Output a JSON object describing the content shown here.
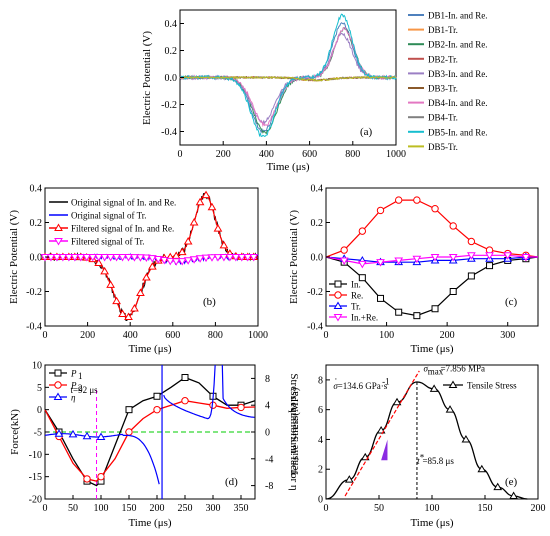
{
  "chart_data": [
    {
      "type": "line",
      "panel_label": "(a)",
      "xlabel": "Time (μs)",
      "ylabel": "Electric Potential (V)",
      "xlim": [
        0,
        1000
      ],
      "ylim": [
        -0.5,
        0.5
      ],
      "xticks": [
        "0",
        "200",
        "400",
        "600",
        "800",
        "1000"
      ],
      "yticks": [
        "-0.4",
        "-0.2",
        "0.0",
        "0.2",
        "0.4"
      ],
      "legend_position": "right",
      "series": [
        {
          "name": "DB1-In. and Re.",
          "color": "#4f81bd",
          "peak_neg": -0.4,
          "peak_pos": 0.4
        },
        {
          "name": "DB1-Tr.",
          "color": "#f79646",
          "amp": -0.02
        },
        {
          "name": "DB2-In. and Re.",
          "color": "#2e8b57",
          "peak_neg": -0.41,
          "peak_pos": 0.36
        },
        {
          "name": "DB2-Tr.",
          "color": "#c0504d",
          "amp": -0.02
        },
        {
          "name": "DB3-In. and Re.",
          "color": "#9b7fc4",
          "peak_neg": -0.33,
          "peak_pos": 0.32
        },
        {
          "name": "DB3-Tr.",
          "color": "#8b5a2b",
          "amp": -0.02
        },
        {
          "name": "DB4-In. and Re.",
          "color": "#e377c2",
          "peak_neg": -0.35,
          "peak_pos": 0.36
        },
        {
          "name": "DB4-Tr.",
          "color": "#808080",
          "amp": -0.02
        },
        {
          "name": "DB5-In. and Re.",
          "color": "#17becf",
          "peak_neg": -0.44,
          "peak_pos": 0.46
        },
        {
          "name": "DB5-Tr.",
          "color": "#bcbd22",
          "amp": -0.02
        }
      ]
    },
    {
      "type": "line",
      "panel_label": "(b)",
      "xlabel": "Time (μs)",
      "ylabel": "Electric Potential (V)",
      "xlim": [
        0,
        1000
      ],
      "ylim": [
        -0.4,
        0.4
      ],
      "xticks": [
        "0",
        "200",
        "400",
        "600",
        "800",
        "1000"
      ],
      "yticks": [
        "-0.4",
        "-0.2",
        "0.0",
        "0.2",
        "0.4"
      ],
      "legend_position": "top-left",
      "series": [
        {
          "name": "Original signal of In. and Re.",
          "color": "#000000"
        },
        {
          "name": "Original signal of Tr.",
          "color": "#0000ff"
        },
        {
          "name": "Filtered signal of In. and Re.",
          "color": "#ff0000",
          "marker": "triangle"
        },
        {
          "name": "Filtered signal of Tr.",
          "color": "#ff00ff",
          "marker": "triangle-down"
        }
      ],
      "key_points": {
        "incident_min": [
          385,
          -0.35
        ],
        "reflected_max": [
          750,
          0.36
        ]
      }
    },
    {
      "type": "line",
      "panel_label": "(c)",
      "xlabel": "Time (μs)",
      "ylabel": "Electric Potential (V)",
      "xlim": [
        0,
        350
      ],
      "ylim": [
        -0.4,
        0.4
      ],
      "xticks": [
        "0",
        "100",
        "200",
        "300"
      ],
      "yticks": [
        "-0.4",
        "-0.2",
        "0.0",
        "0.2",
        "0.4"
      ],
      "legend_position": "bottom-left",
      "x": [
        0,
        30,
        60,
        90,
        120,
        150,
        180,
        210,
        240,
        270,
        300,
        330,
        350
      ],
      "series": [
        {
          "name": "In.",
          "color": "#000000",
          "marker": "square",
          "values": [
            0,
            -0.03,
            -0.12,
            -0.24,
            -0.32,
            -0.34,
            -0.3,
            -0.2,
            -0.11,
            -0.05,
            -0.02,
            -0.01,
            0
          ]
        },
        {
          "name": "Re.",
          "color": "#ff0000",
          "marker": "circle",
          "values": [
            0,
            0.04,
            0.15,
            0.27,
            0.33,
            0.33,
            0.28,
            0.18,
            0.09,
            0.04,
            0.02,
            0.01,
            0
          ]
        },
        {
          "name": "Tr.",
          "color": "#0000ff",
          "marker": "triangle",
          "values": [
            0,
            -0.01,
            -0.02,
            -0.03,
            -0.03,
            -0.03,
            -0.02,
            -0.02,
            -0.01,
            -0.01,
            -0.01,
            0,
            0
          ]
        },
        {
          "name": "In.+Re.",
          "color": "#ff00ff",
          "marker": "triangle-down",
          "values": [
            0,
            -0.02,
            -0.04,
            -0.03,
            -0.02,
            -0.01,
            0.0,
            0.0,
            0.01,
            0.01,
            0.01,
            0.0,
            0
          ]
        }
      ]
    },
    {
      "type": "line",
      "panel_label": "(d)",
      "xlabel": "Time (μs)",
      "ylabel": "Force(kN)",
      "y2label": "Stress equilibrium factor η",
      "xlim": [
        0,
        375
      ],
      "ylim": [
        -20,
        10
      ],
      "y2lim": [
        -10,
        10
      ],
      "xticks": [
        "0",
        "50",
        "100",
        "150",
        "200",
        "250",
        "300",
        "350"
      ],
      "yticks": [
        "-20",
        "-15",
        "-10",
        "-5",
        "0",
        "5",
        "10"
      ],
      "y2ticks": [
        "-8",
        "-4",
        "0",
        "4",
        "8"
      ],
      "legend_position": "top-left",
      "annotation": "t=92 μs",
      "annotation_x": 92,
      "equilibrium_line": 0,
      "x": [
        0,
        25,
        50,
        75,
        92,
        100,
        125,
        150,
        175,
        200,
        225,
        250,
        275,
        300,
        325,
        350,
        375
      ],
      "series": [
        {
          "name": "P1",
          "legend_label": "P",
          "legend_sub": "1",
          "color": "#000000",
          "marker": "square",
          "values": [
            0,
            -5,
            -11,
            -16,
            -17,
            -16,
            -8,
            0,
            2,
            3,
            5,
            7.2,
            6,
            3,
            1,
            1,
            2
          ]
        },
        {
          "name": "P2",
          "legend_label": "P",
          "legend_sub": "2",
          "color": "#ff0000",
          "marker": "circle",
          "values": [
            0,
            -6,
            -12,
            -15.5,
            -16,
            -15,
            -11,
            -5,
            -2,
            0,
            1,
            2,
            1.5,
            1,
            0.3,
            0.5,
            0.6
          ]
        },
        {
          "name": "η",
          "legend_label": "η",
          "color": "#0000ff",
          "marker": "triangle"
        }
      ]
    },
    {
      "type": "line",
      "panel_label": "(e)",
      "xlabel": "Time (μs)",
      "ylabel": "Tensile Stress(MPa)",
      "xlim": [
        0,
        200
      ],
      "ylim": [
        0,
        9
      ],
      "xticks": [
        "0",
        "50",
        "100",
        "150",
        "200"
      ],
      "yticks": [
        "0",
        "2",
        "4",
        "6",
        "8"
      ],
      "legend_position": "top-right",
      "annotation_sigma": "σ",
      "annotation_sigma_sub": "max",
      "annotation_sigma_val": "=7.856 MPa",
      "annotation_rate": "σ",
      "annotation_rate_val": "=134.6 GPa·s",
      "annotation_rate_exp": "-1",
      "annotation_t": "t",
      "annotation_t_sup": "*",
      "annotation_t_val": "=85.8 μs",
      "peak_time": 85.8,
      "peak_value": 7.856,
      "x": [
        0,
        22,
        37,
        52,
        67,
        85.8,
        102,
        117,
        132,
        147,
        162,
        177,
        190
      ],
      "series": [
        {
          "name": "Tensile Stress",
          "color": "#000000",
          "marker": "triangle",
          "values": [
            0,
            1.3,
            2.8,
            4.6,
            6.5,
            7.856,
            7.4,
            6.0,
            4.0,
            2.0,
            0.8,
            0.2,
            0
          ]
        }
      ]
    }
  ]
}
